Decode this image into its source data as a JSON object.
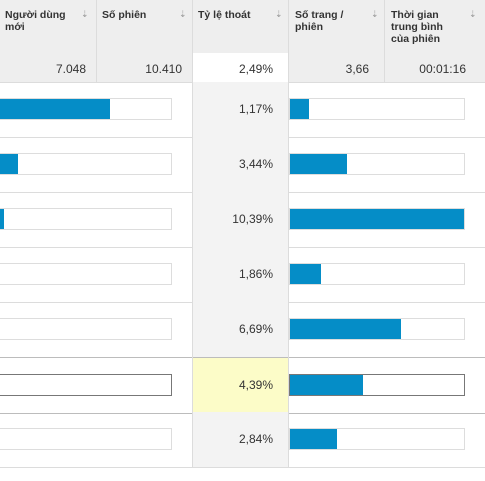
{
  "header": {
    "new_users": "Người dùng mới",
    "sessions": "Số phiên",
    "bounce_rate": "Tỷ lệ thoát",
    "pages_per_session": "Số trang / phiên",
    "avg_session_duration": "Thời gian trung bình của phiên",
    "sort_icon": "sort-desc-arrow-icon"
  },
  "totals": {
    "new_users": "7.048",
    "sessions": "10.410",
    "bounce_rate": "2,49%",
    "pages_per_session": "3,66",
    "avg_session_duration": "00:01:16"
  },
  "rows": [
    {
      "bounce_rate": "1,17%",
      "sessions_share": 0.66,
      "pages_share": 0.11,
      "highlighted": false
    },
    {
      "bounce_rate": "3,44%",
      "sessions_share": 0.14,
      "pages_share": 0.33,
      "highlighted": false
    },
    {
      "bounce_rate": "10,39%",
      "sessions_share": 0.06,
      "pages_share": 1.0,
      "highlighted": false
    },
    {
      "bounce_rate": "1,86%",
      "sessions_share": 0.03,
      "pages_share": 0.18,
      "highlighted": false
    },
    {
      "bounce_rate": "6,69%",
      "sessions_share": 0.02,
      "pages_share": 0.64,
      "highlighted": false
    },
    {
      "bounce_rate": "4,39%",
      "sessions_share": 0.01,
      "pages_share": 0.42,
      "highlighted": true
    },
    {
      "bounce_rate": "2,84%",
      "sessions_share": 0.0,
      "pages_share": 0.27,
      "highlighted": false
    }
  ],
  "colors": {
    "bar": "#058dc7",
    "highlight_row": "#fcfcc8",
    "header_bg": "#eeeeee"
  }
}
